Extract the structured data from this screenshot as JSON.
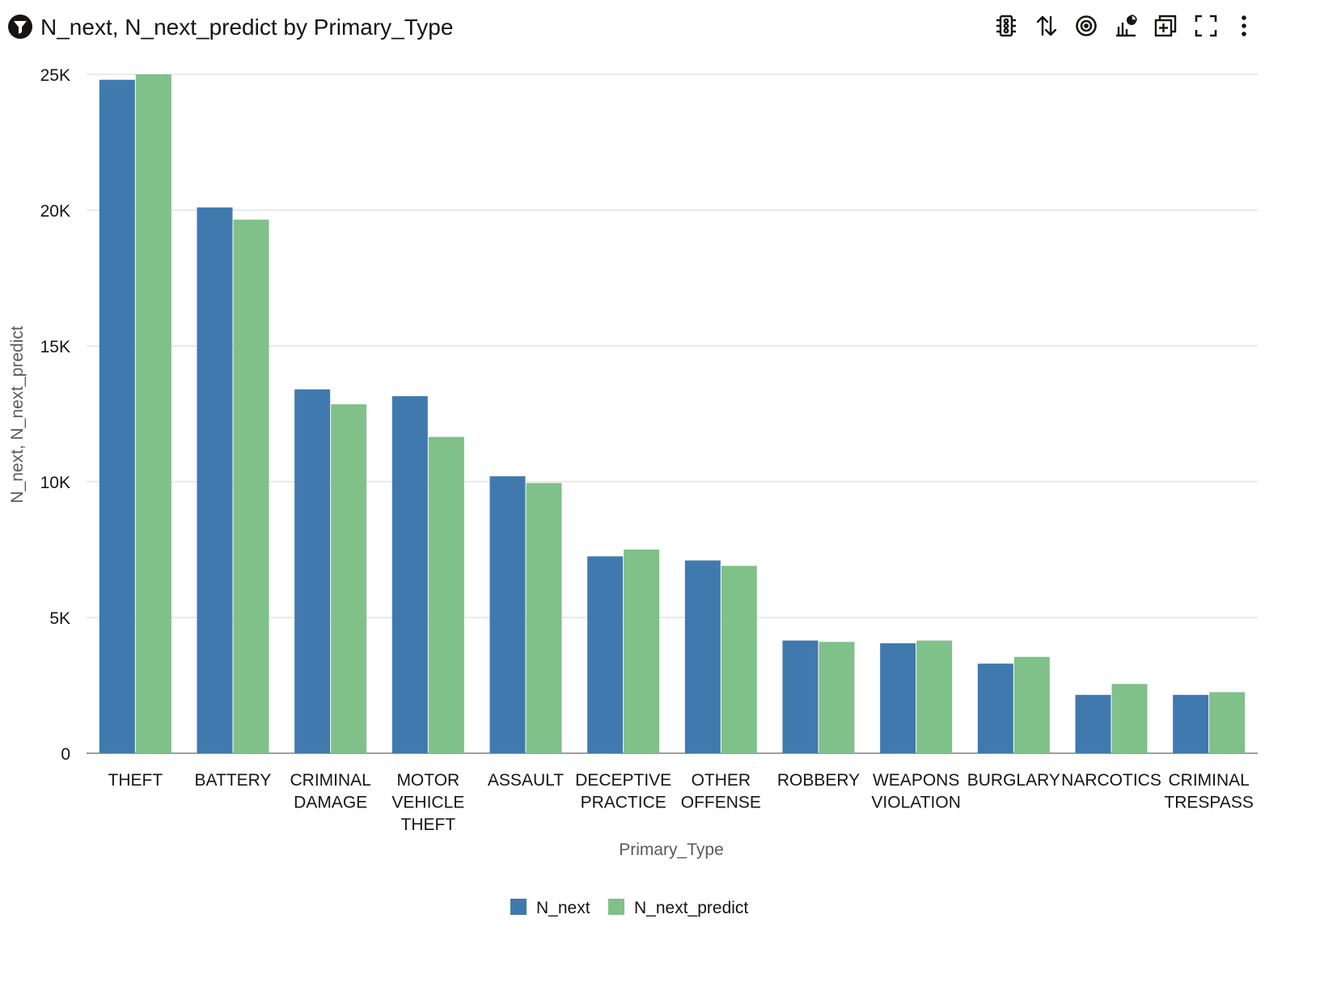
{
  "header": {
    "title": "N_next, N_next_predict by Primary_Type",
    "filter_icon": "filter-icon",
    "toolbar": [
      {
        "name": "traffic-light-icon"
      },
      {
        "name": "sort-icon"
      },
      {
        "name": "target-icon"
      },
      {
        "name": "chart-type-icon"
      },
      {
        "name": "add-to-canvas-icon"
      },
      {
        "name": "fullscreen-icon"
      },
      {
        "name": "more-options-icon"
      }
    ]
  },
  "colors": {
    "N_next": "#4079AE",
    "N_next_predict": "#80C089",
    "gridline": "#e4e4e4",
    "axis": "#9e9e9e"
  },
  "chart_data": {
    "type": "bar",
    "xlabel": "Primary_Type",
    "ylabel": "N_next, N_next_predict",
    "ylim": [
      0,
      25000
    ],
    "yticks": [
      {
        "value": 0,
        "label": "0"
      },
      {
        "value": 5000,
        "label": "5K"
      },
      {
        "value": 10000,
        "label": "10K"
      },
      {
        "value": 15000,
        "label": "15K"
      },
      {
        "value": 20000,
        "label": "20K"
      },
      {
        "value": 25000,
        "label": "25K"
      }
    ],
    "grid": true,
    "legend_position": "bottom",
    "categories": [
      [
        "THEFT"
      ],
      [
        "BATTERY"
      ],
      [
        "CRIMINAL",
        "DAMAGE"
      ],
      [
        "MOTOR",
        "VEHICLE",
        "THEFT"
      ],
      [
        "ASSAULT"
      ],
      [
        "DECEPTIVE",
        "PRACTICE"
      ],
      [
        "OTHER",
        "OFFENSE"
      ],
      [
        "ROBBERY"
      ],
      [
        "WEAPONS",
        "VIOLATION"
      ],
      [
        "BURGLARY"
      ],
      [
        "NARCOTICS"
      ],
      [
        "CRIMINAL",
        "TRESPASS"
      ]
    ],
    "series": [
      {
        "name": "N_next",
        "color": "#4079AE",
        "values": [
          24800,
          20100,
          13400,
          13150,
          10200,
          7250,
          7100,
          4150,
          4050,
          3300,
          2150,
          2150
        ]
      },
      {
        "name": "N_next_predict",
        "color": "#80C089",
        "values": [
          25000,
          19650,
          12850,
          11650,
          9950,
          7500,
          6900,
          4100,
          4150,
          3550,
          2550,
          2250
        ]
      }
    ]
  }
}
